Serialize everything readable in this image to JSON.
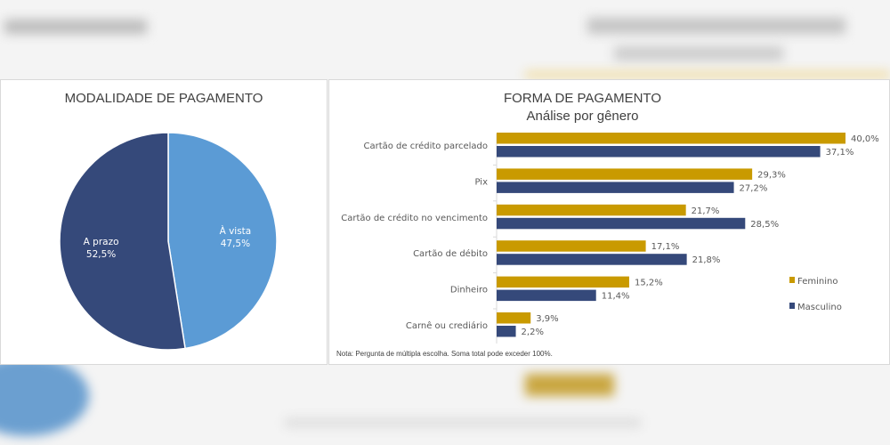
{
  "chart_data": [
    {
      "type": "pie",
      "title": "MODALIDADE DE PAGAMENTO",
      "slices": [
        {
          "label": "À vista",
          "value": 47.5,
          "display": "47,5%",
          "color": "#5b9bd5"
        },
        {
          "label": "A prazo",
          "value": 52.5,
          "display": "52,5%",
          "color": "#35497a"
        }
      ]
    },
    {
      "type": "bar",
      "orientation": "horizontal",
      "title": "FORMA DE PAGAMENTO",
      "subtitle": "Análise por gênero",
      "categories": [
        "Cartão de crédito parcelado",
        "Pix",
        "Cartão de crédito no vencimento",
        "Cartão de débito",
        "Dinheiro",
        "Carnê ou crediário"
      ],
      "series": [
        {
          "name": "Feminino",
          "color": "#c99a00",
          "values": [
            40.0,
            29.3,
            21.7,
            17.1,
            15.2,
            3.9
          ],
          "labels": [
            "40,0%",
            "29,3%",
            "21,7%",
            "17,1%",
            "15,2%",
            "3,9%"
          ]
        },
        {
          "name": "Masculino",
          "color": "#35497a",
          "values": [
            37.1,
            27.2,
            28.5,
            21.8,
            11.4,
            2.2
          ],
          "labels": [
            "37,1%",
            "27,2%",
            "28,5%",
            "21,8%",
            "11,4%",
            "2,2%"
          ]
        }
      ],
      "legend": "right",
      "grid": false,
      "note": "Nota: Pergunta de múltipla escolha. Soma total pode exceder 100%."
    }
  ]
}
